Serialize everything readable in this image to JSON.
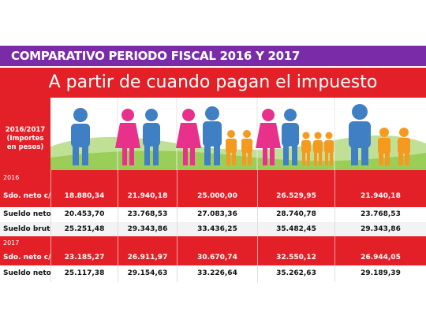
{
  "banner": {
    "title": "COMPARATIVO PERIODO FISCAL 2016 Y 2017"
  },
  "header": {
    "subtitle": "A partir de cuando pagan el impuesto",
    "corner_label": "2016/2017 (Importes en pesos)"
  },
  "icons": [
    "man-icon",
    "woman-man-icon",
    "couple-two-children-icon",
    "woman-man-three-children-icon",
    "man-two-children-icon"
  ],
  "colors": {
    "banner": "#7a2ca8",
    "red": "#e32027",
    "blue": "#3f7fc4",
    "pink": "#e8318b",
    "orange": "#f59a1e",
    "green": "#8cc63f"
  },
  "rows": [
    {
      "label": "2016",
      "style": "year",
      "values": [
        "",
        "",
        "",
        "",
        ""
      ]
    },
    {
      "label": "Sdo. neto c/SAC",
      "style": "red",
      "values": [
        "18.880,34",
        "21.940,18",
        "25.000,00",
        "26.529,95",
        "21.940,18"
      ]
    },
    {
      "label": "Sueldo neto",
      "style": "white",
      "values": [
        "20.453,70",
        "23.768,53",
        "27.083,36",
        "28.740,78",
        "23.768,53"
      ]
    },
    {
      "label": "Sueldo bruto",
      "style": "light",
      "values": [
        "25.251,48",
        "29.343,86",
        "33.436,25",
        "35.482,45",
        "29.343,86"
      ]
    },
    {
      "label": "2017",
      "style": "year",
      "values": [
        "",
        "",
        "",
        "",
        ""
      ]
    },
    {
      "label": "Sdo. neto c/SAC",
      "style": "red",
      "values": [
        "23.185,27",
        "26.911,97",
        "30.670,74",
        "32.550,12",
        "26.944,05"
      ]
    },
    {
      "label": "Sueldo neto",
      "style": "white",
      "values": [
        "25.117,38",
        "29.154,63",
        "33.226,64",
        "35.262,63",
        "29.189,39"
      ]
    }
  ]
}
